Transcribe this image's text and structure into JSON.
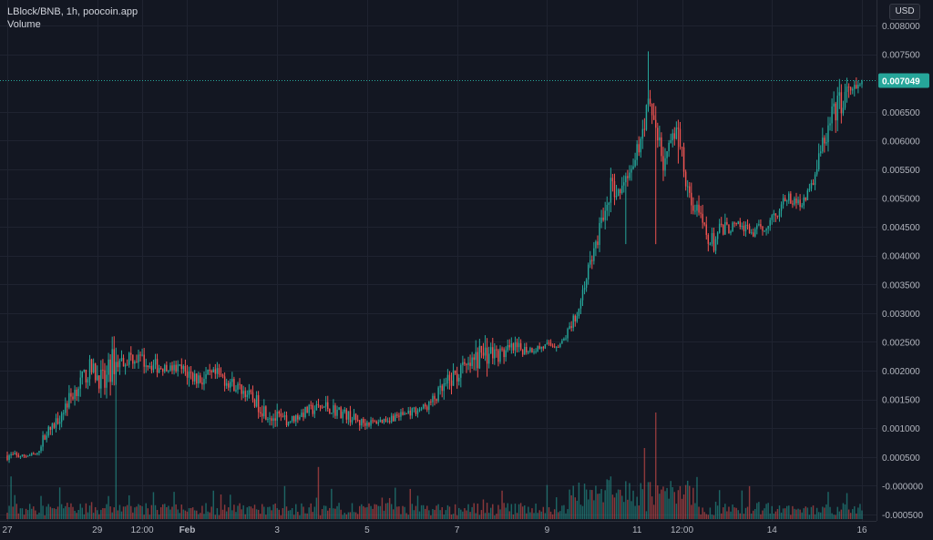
{
  "legend": {
    "title": "LBlock/BNB, 1h, poocoin.app",
    "volume_label": "Volume"
  },
  "currency": "USD",
  "colors": {
    "background": "#131722",
    "grid": "#1f2330",
    "axis_text": "#b2b5be",
    "up": "#26a69a",
    "down": "#ef5350",
    "volume_up": "#26a69a",
    "volume_down": "#ef5350",
    "last_price_bg": "#26a69a"
  },
  "chart_data": {
    "type": "candlestick",
    "y_axis": {
      "ticks": [
        "0.008000",
        "0.007500",
        "0.006500",
        "0.006000",
        "0.005500",
        "0.005000",
        "0.004500",
        "0.004000",
        "0.003500",
        "0.003000",
        "0.002500",
        "0.002000",
        "0.001500",
        "0.001000",
        "0.000500",
        "-0.000000",
        "-0.000500"
      ],
      "range": [
        -0.0005,
        0.008
      ],
      "position": "right"
    },
    "x_axis": {
      "ticks": [
        "27",
        "29",
        "12:00",
        "Feb",
        "3",
        "5",
        "7",
        "9",
        "11",
        "12:00",
        "14",
        "16"
      ],
      "tick_positions": [
        0,
        48,
        72,
        96,
        144,
        192,
        240,
        288,
        336,
        360,
        408,
        456
      ],
      "bold_ticks": [
        "Feb"
      ],
      "range": [
        0,
        456
      ]
    },
    "last_price": "0.007049",
    "grid": true,
    "price_anchors": [
      [
        0,
        0.00045,
        0.0006
      ],
      [
        8,
        0.00048,
        0.00055
      ],
      [
        16,
        0.00052,
        0.00058
      ],
      [
        20,
        0.0008,
        0.001
      ],
      [
        24,
        0.0009,
        0.0011
      ],
      [
        32,
        0.0013,
        0.0016
      ],
      [
        38,
        0.0016,
        0.0019
      ],
      [
        44,
        0.00185,
        0.0022
      ],
      [
        48,
        0.00175,
        0.0021
      ],
      [
        52,
        0.0015,
        0.002
      ],
      [
        56,
        0.00185,
        0.0024
      ],
      [
        60,
        0.002,
        0.0023
      ],
      [
        66,
        0.0021,
        0.0024
      ],
      [
        72,
        0.00205,
        0.0023
      ],
      [
        80,
        0.00195,
        0.0022
      ],
      [
        86,
        0.002,
        0.0021
      ],
      [
        92,
        0.0019,
        0.00215
      ],
      [
        98,
        0.00175,
        0.0021
      ],
      [
        104,
        0.0017,
        0.002
      ],
      [
        112,
        0.0018,
        0.00205
      ],
      [
        120,
        0.00165,
        0.0019
      ],
      [
        128,
        0.0015,
        0.0017
      ],
      [
        136,
        0.0012,
        0.0015
      ],
      [
        144,
        0.001,
        0.0013
      ],
      [
        150,
        0.00105,
        0.0012
      ],
      [
        160,
        0.0012,
        0.0014
      ],
      [
        170,
        0.00125,
        0.0015
      ],
      [
        180,
        0.00115,
        0.00135
      ],
      [
        188,
        0.001,
        0.0012
      ],
      [
        196,
        0.00105,
        0.00115
      ],
      [
        204,
        0.0011,
        0.00125
      ],
      [
        214,
        0.0012,
        0.00135
      ],
      [
        224,
        0.0013,
        0.00145
      ],
      [
        232,
        0.0015,
        0.0018
      ],
      [
        240,
        0.00175,
        0.00215
      ],
      [
        246,
        0.0019,
        0.0022
      ],
      [
        252,
        0.002,
        0.0025
      ],
      [
        256,
        0.0021,
        0.00255
      ],
      [
        262,
        0.00215,
        0.0024
      ],
      [
        270,
        0.00225,
        0.0025
      ],
      [
        280,
        0.0023,
        0.00245
      ],
      [
        288,
        0.00235,
        0.0025
      ],
      [
        296,
        0.0024,
        0.00255
      ],
      [
        304,
        0.0029,
        0.0031
      ],
      [
        310,
        0.0036,
        0.0039
      ],
      [
        316,
        0.0042,
        0.0046
      ],
      [
        322,
        0.005,
        0.0054
      ],
      [
        326,
        0.0048,
        0.0052
      ],
      [
        330,
        0.0052,
        0.0055
      ],
      [
        334,
        0.0053,
        0.0056
      ],
      [
        338,
        0.0059,
        0.0063
      ],
      [
        342,
        0.0064,
        0.0068
      ],
      [
        346,
        0.006,
        0.0066
      ],
      [
        350,
        0.0054,
        0.0058
      ],
      [
        354,
        0.0058,
        0.0061
      ],
      [
        358,
        0.006,
        0.0063
      ],
      [
        362,
        0.0052,
        0.0056
      ],
      [
        366,
        0.0047,
        0.0051
      ],
      [
        372,
        0.0043,
        0.0046
      ],
      [
        376,
        0.004,
        0.0044
      ],
      [
        380,
        0.0042,
        0.0046
      ],
      [
        386,
        0.0044,
        0.0046
      ],
      [
        392,
        0.0044,
        0.0046
      ],
      [
        398,
        0.0043,
        0.0045
      ],
      [
        404,
        0.0044,
        0.0046
      ],
      [
        410,
        0.0046,
        0.0049
      ],
      [
        416,
        0.0049,
        0.0051
      ],
      [
        422,
        0.0048,
        0.005
      ],
      [
        428,
        0.005,
        0.0052
      ],
      [
        434,
        0.0056,
        0.006
      ],
      [
        440,
        0.0062,
        0.0066
      ],
      [
        444,
        0.0064,
        0.0069
      ],
      [
        448,
        0.0066,
        0.007
      ],
      [
        452,
        0.0067,
        0.007
      ],
      [
        456,
        0.0069,
        0.00705
      ]
    ],
    "price_spikes": [
      [
        58,
        0.0019,
        0.0024
      ],
      [
        342,
        0.0065,
        0.00755
      ],
      [
        346,
        0.0042,
        0.0066
      ],
      [
        358,
        0.0056,
        0.00635
      ],
      [
        330,
        0.0042,
        0.0054
      ]
    ],
    "volume_spikes": [
      [
        58,
        0.65
      ],
      [
        2,
        0.18
      ],
      [
        110,
        0.12
      ],
      [
        166,
        0.22
      ],
      [
        346,
        0.45
      ],
      [
        340,
        0.3
      ],
      [
        322,
        0.18
      ],
      [
        330,
        0.16
      ],
      [
        364,
        0.14
      ],
      [
        334,
        0.12
      ],
      [
        264,
        0.12
      ]
    ]
  }
}
